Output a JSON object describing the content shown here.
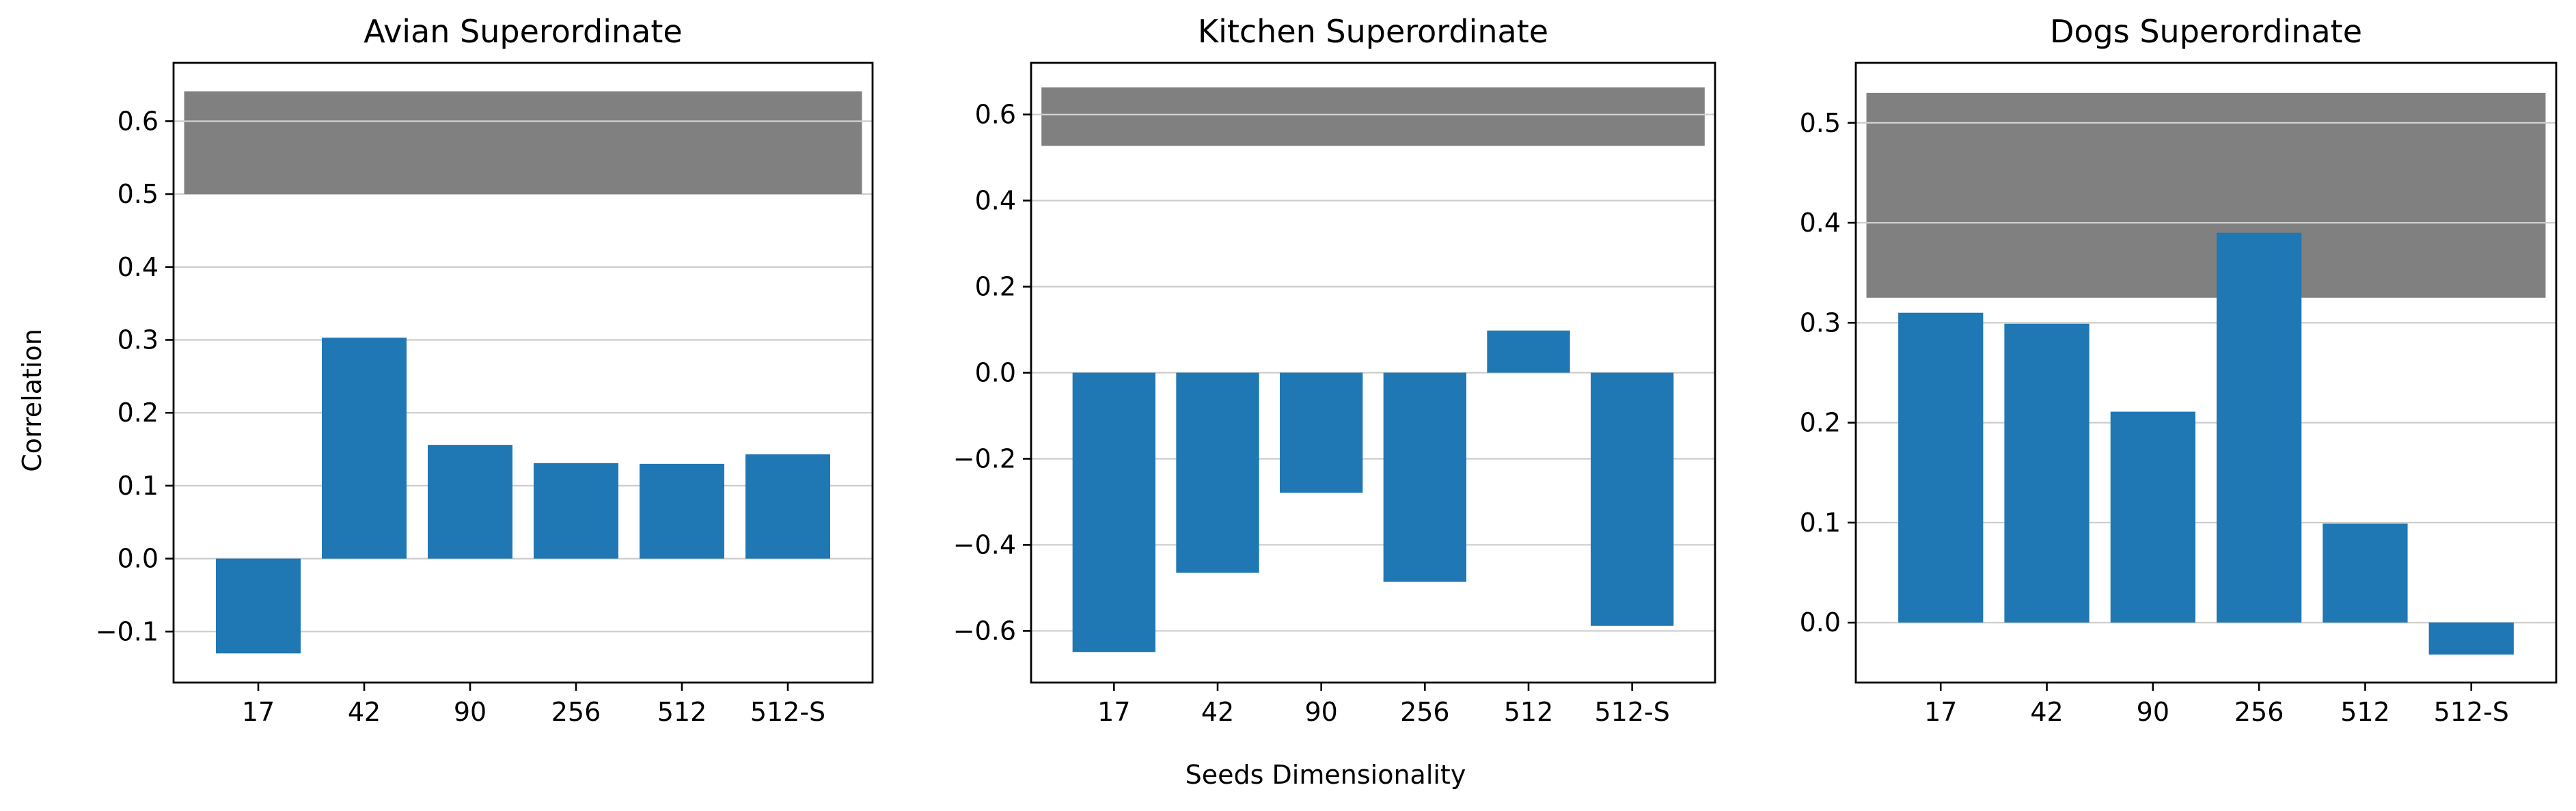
{
  "figure": {
    "ylabel": "Correlation",
    "xlabel": "Seeds Dimensionality"
  },
  "colors": {
    "bar": "#1f77b4",
    "band": "#808080",
    "grid": "#cccccc",
    "axis": "#000000"
  },
  "chart_data": [
    {
      "type": "bar",
      "title": "Avian Superordinate",
      "categories": [
        "17",
        "42",
        "90",
        "256",
        "512",
        "512-S"
      ],
      "values": [
        -0.13,
        0.303,
        0.156,
        0.131,
        0.13,
        0.143
      ],
      "band": [
        0.5,
        0.641
      ],
      "ylim": [
        -0.17,
        0.68
      ],
      "yticks": [
        -0.1,
        0.0,
        0.1,
        0.2,
        0.3,
        0.4,
        0.5,
        0.6
      ],
      "ytick_labels": [
        "−0.1",
        "0.0",
        "0.1",
        "0.2",
        "0.3",
        "0.4",
        "0.5",
        "0.6"
      ],
      "grid": "horizontal"
    },
    {
      "type": "bar",
      "title": "Kitchen Superordinate",
      "categories": [
        "17",
        "42",
        "90",
        "256",
        "512",
        "512-S"
      ],
      "values": [
        -0.649,
        -0.465,
        -0.279,
        -0.486,
        0.098,
        -0.588
      ],
      "band": [
        0.527,
        0.663
      ],
      "ylim": [
        -0.72,
        0.72
      ],
      "yticks": [
        -0.6,
        -0.4,
        -0.2,
        0.0,
        0.2,
        0.4,
        0.6
      ],
      "ytick_labels": [
        "−0.6",
        "−0.4",
        "−0.2",
        "0.0",
        "0.2",
        "0.4",
        "0.6"
      ],
      "grid": "horizontal"
    },
    {
      "type": "bar",
      "title": "Dogs Superordinate",
      "categories": [
        "17",
        "42",
        "90",
        "256",
        "512",
        "512-S"
      ],
      "values": [
        0.31,
        0.299,
        0.211,
        0.39,
        0.099,
        -0.032
      ],
      "band": [
        0.325,
        0.53
      ],
      "ylim": [
        -0.06,
        0.56
      ],
      "yticks": [
        0.0,
        0.1,
        0.2,
        0.3,
        0.4,
        0.5
      ],
      "ytick_labels": [
        "0.0",
        "0.1",
        "0.2",
        "0.3",
        "0.4",
        "0.5"
      ],
      "grid": "horizontal"
    }
  ]
}
